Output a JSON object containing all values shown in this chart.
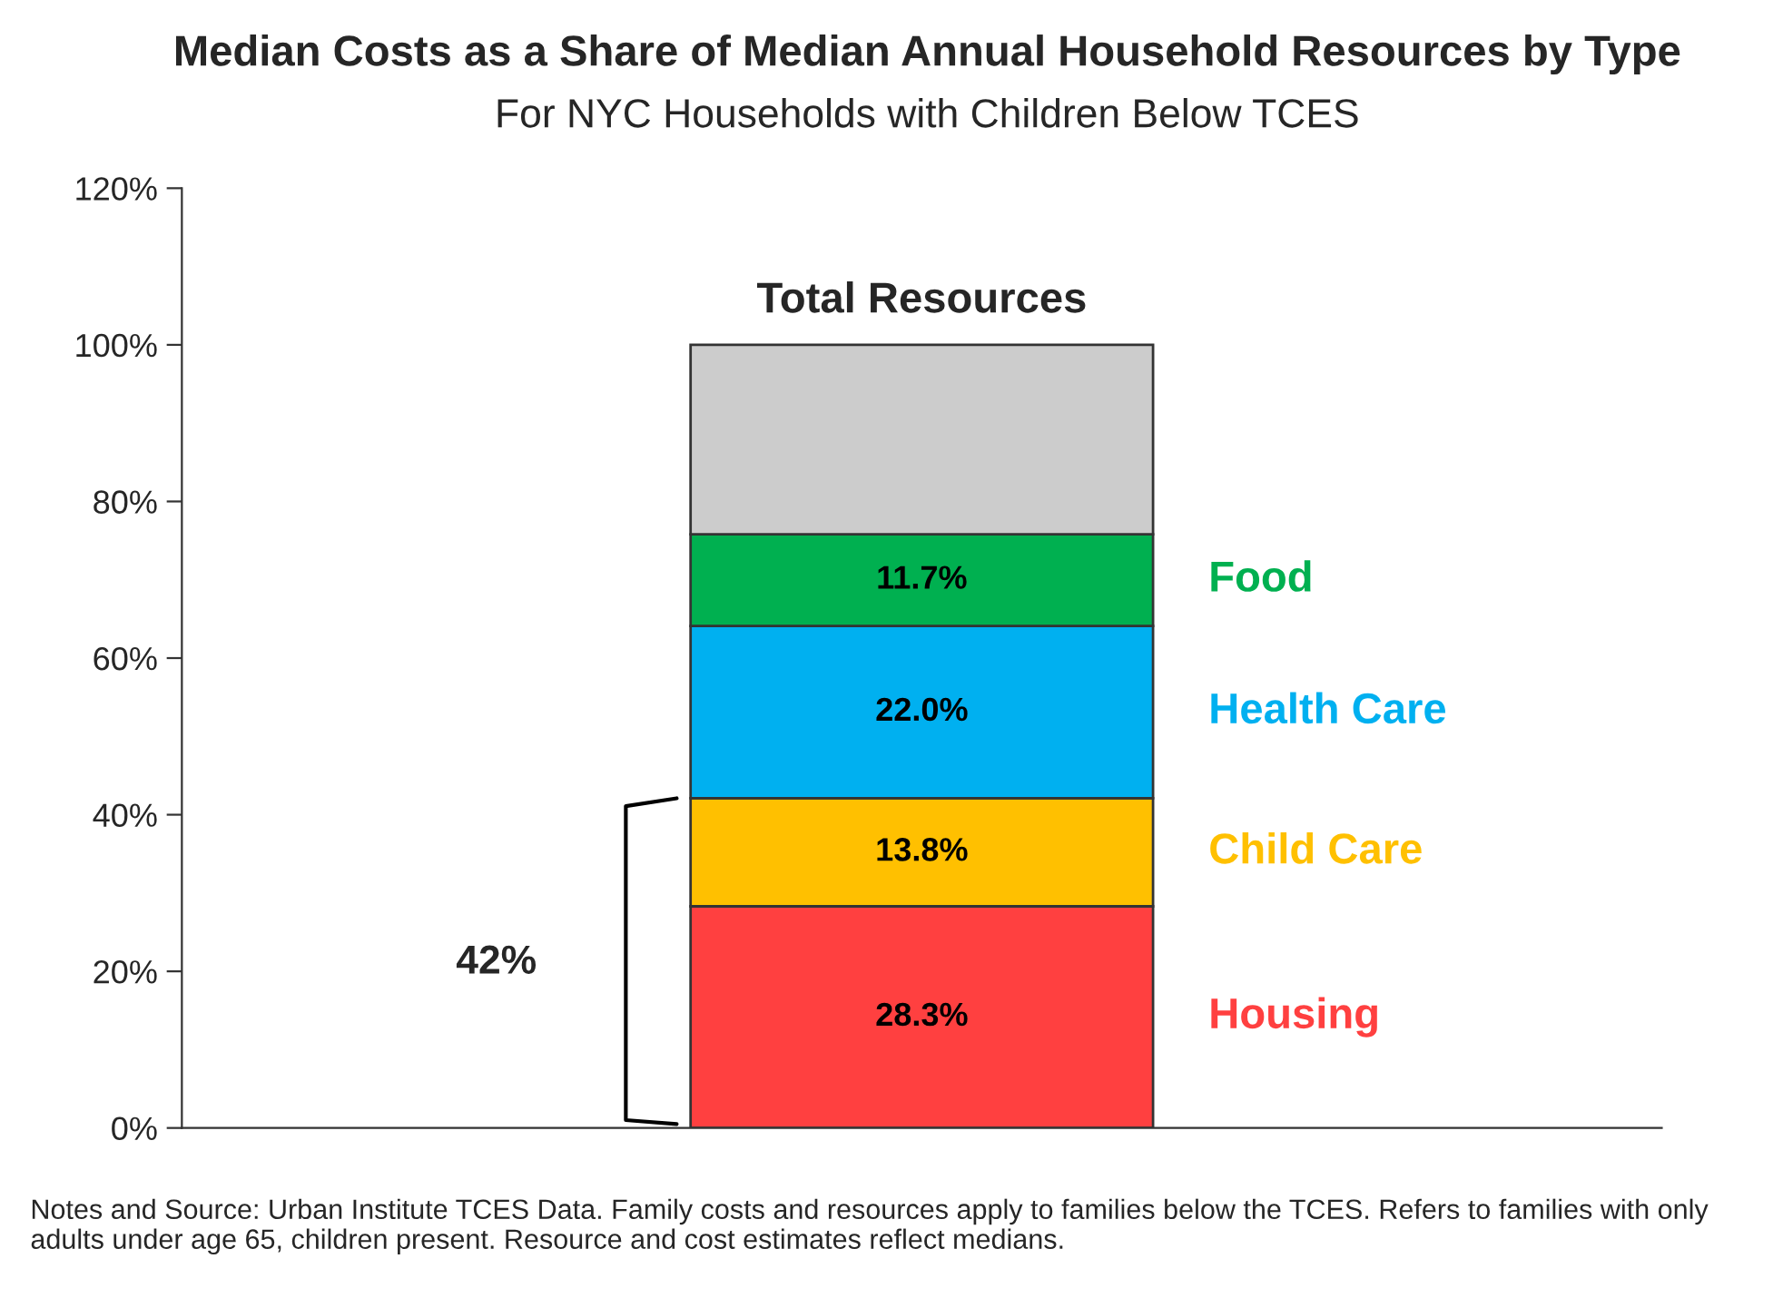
{
  "chart_data": {
    "type": "bar",
    "stacked": true,
    "title": "Median Costs as a Share of Median Annual Household Resources by Type",
    "subtitle": "For NYC Households with Children Below TCES",
    "categories": [
      null
    ],
    "series": [
      {
        "name": "Housing",
        "color": "#ff4040",
        "values": [
          28.3
        ],
        "value_labels": [
          "28.3%"
        ]
      },
      {
        "name": "Child Care",
        "color": "#ffc000",
        "values": [
          13.8
        ],
        "value_labels": [
          "13.8%"
        ]
      },
      {
        "name": "Health Care",
        "color": "#00b0f0",
        "values": [
          22.0
        ],
        "value_labels": [
          "22.0%"
        ]
      },
      {
        "name": "Food",
        "color": "#00b050",
        "values": [
          11.7
        ],
        "value_labels": [
          "11.7%"
        ]
      },
      {
        "color": "#cccccc",
        "values": [
          24.2
        ],
        "value_labels": [
          null
        ]
      }
    ],
    "ylim": [
      0,
      120
    ],
    "yticks": [
      {
        "value": 0,
        "label": "0%"
      },
      {
        "value": 20,
        "label": "20%"
      },
      {
        "value": 40,
        "label": "40%"
      },
      {
        "value": 60,
        "label": "60%"
      },
      {
        "value": 80,
        "label": "80%"
      },
      {
        "value": 100,
        "label": "100%"
      },
      {
        "value": 120,
        "label": "120%"
      }
    ],
    "grid": false,
    "legend": false,
    "annotations": [
      {
        "text": "Total Resources",
        "y": 100
      },
      "42%",
      "Notes and Source: Urban Institute TCES Data. Family costs and resources apply to families below the TCES. Refers to families with only adults under age 65, children present. Resource and cost estimates reflect medians."
    ]
  }
}
